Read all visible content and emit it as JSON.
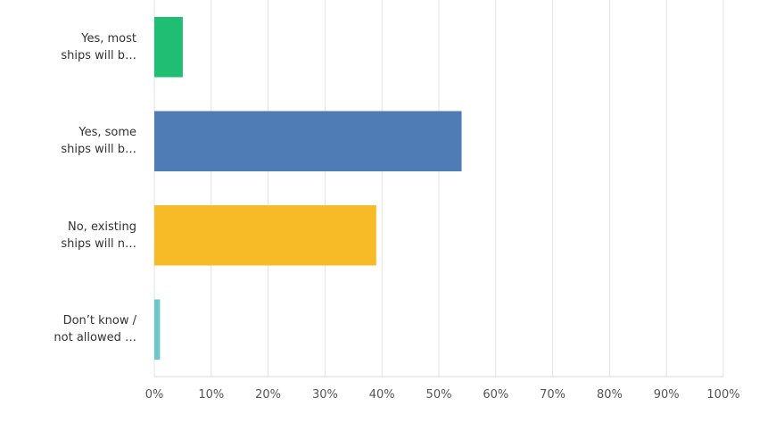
{
  "chart_data": {
    "type": "hbar",
    "categories": [
      "Yes, most\nships will b…",
      "Yes, some\nships will b…",
      "No, existing\nships will n…",
      "Don’t know /\nnot allowed …"
    ],
    "values": [
      5,
      54,
      39,
      1
    ],
    "colors": [
      "#1fbe73",
      "#507cb5",
      "#f6bb26",
      "#6cc8cd"
    ],
    "xlim": [
      0,
      100
    ],
    "xticks": [
      {
        "value": 0,
        "label": "0%"
      },
      {
        "value": 10,
        "label": "10%"
      },
      {
        "value": 20,
        "label": "20%"
      },
      {
        "value": 30,
        "label": "30%"
      },
      {
        "value": 40,
        "label": "40%"
      },
      {
        "value": 50,
        "label": "50%"
      },
      {
        "value": 60,
        "label": "60%"
      },
      {
        "value": 70,
        "label": "70%"
      },
      {
        "value": 80,
        "label": "80%"
      },
      {
        "value": 90,
        "label": "90%"
      },
      {
        "value": 100,
        "label": "100%"
      }
    ],
    "grid": true
  }
}
